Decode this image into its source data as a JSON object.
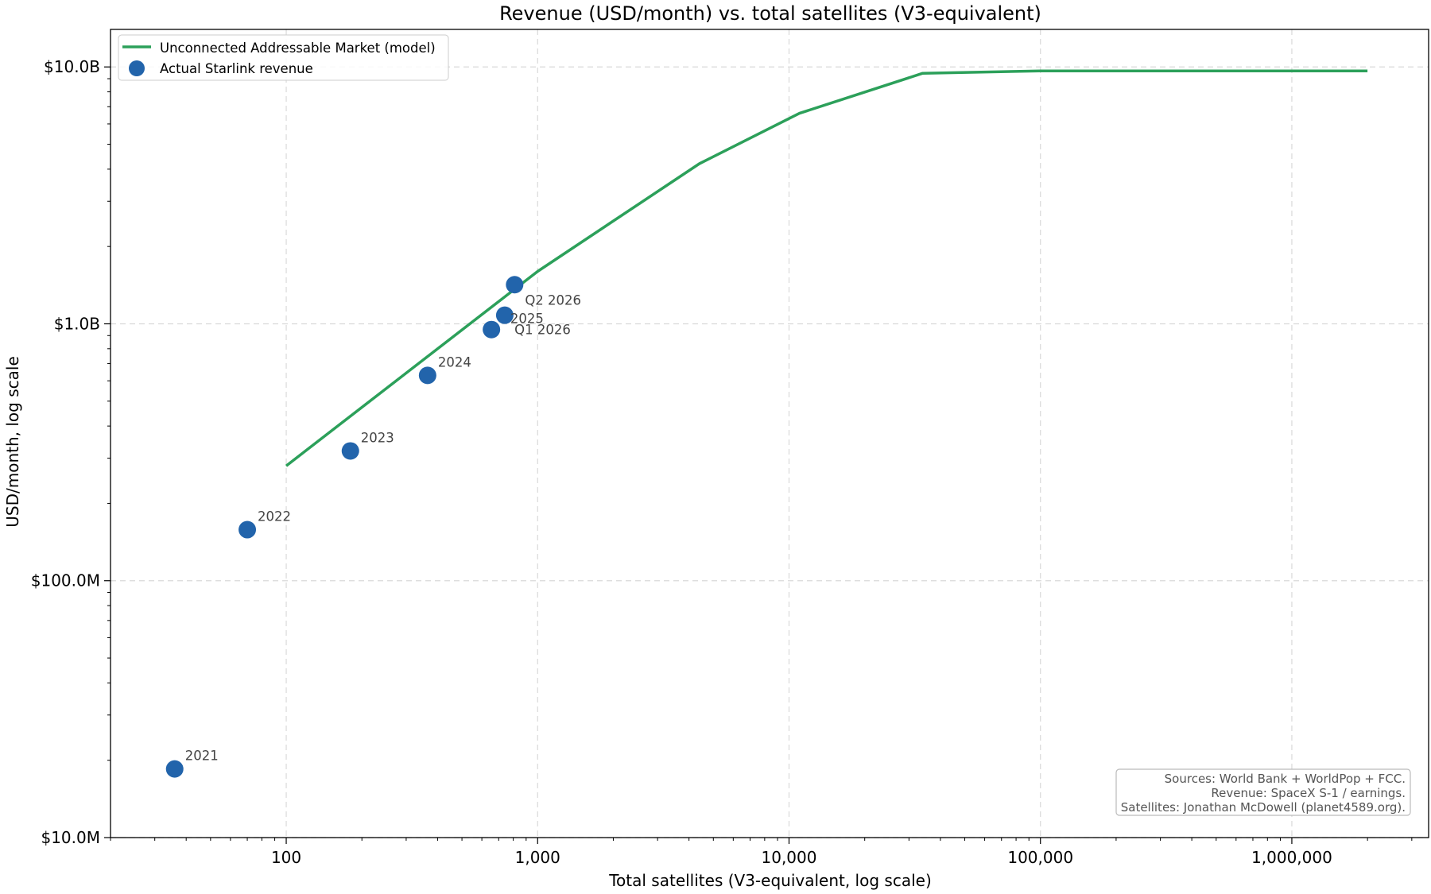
{
  "chart_data": {
    "type": "scatter",
    "title": "Revenue (USD/month) vs. total satellites (V3-equivalent)",
    "xlabel": "Total satellites (V3-equivalent, log scale)",
    "ylabel": "USD/month, log scale",
    "x_scale": "log",
    "y_scale": "log",
    "xlim": [
      20,
      3500000
    ],
    "ylim": [
      10000000,
      14000000000
    ],
    "x_ticks": [
      {
        "value": 100,
        "label": "100"
      },
      {
        "value": 1000,
        "label": "1,000"
      },
      {
        "value": 10000,
        "label": "10,000"
      },
      {
        "value": 100000,
        "label": "100,000"
      },
      {
        "value": 1000000,
        "label": "1,000,000"
      }
    ],
    "y_ticks": [
      {
        "value": 10000000,
        "label": "$10.0M"
      },
      {
        "value": 100000000,
        "label": "$100.0M"
      },
      {
        "value": 1000000000,
        "label": "$1.0B"
      },
      {
        "value": 10000000000,
        "label": "$10.0B"
      }
    ],
    "grid": true,
    "legend_position": "top-left",
    "series": [
      {
        "name": "Unconnected Addressable Market (model)",
        "type": "line",
        "color": "#2ca05a",
        "points": [
          {
            "x": 100,
            "y": 280000000
          },
          {
            "x": 1000,
            "y": 1600000000
          },
          {
            "x": 4400,
            "y": 4200000000
          },
          {
            "x": 11000,
            "y": 6600000000
          },
          {
            "x": 34000,
            "y": 9450000000
          },
          {
            "x": 100000,
            "y": 9650000000
          },
          {
            "x": 2000000,
            "y": 9650000000
          }
        ]
      },
      {
        "name": "Actual Starlink revenue",
        "type": "scatter",
        "color": "#2264ab",
        "points": [
          {
            "x": 36,
            "y": 18500000,
            "label": "2021"
          },
          {
            "x": 70,
            "y": 158000000,
            "label": "2022"
          },
          {
            "x": 180,
            "y": 320000000,
            "label": "2023"
          },
          {
            "x": 365,
            "y": 630000000,
            "label": "2024"
          },
          {
            "x": 740,
            "y": 1080000000,
            "label": "2025"
          },
          {
            "x": 655,
            "y": 950000000,
            "label": "Q1 2026"
          },
          {
            "x": 810,
            "y": 1420000000,
            "label": "Q2 2026"
          }
        ]
      }
    ],
    "annotation": {
      "lines": [
        "Sources: World Bank + WorldPop + FCC.",
        "Revenue: SpaceX S-1 / earnings.",
        "Satellites: Jonathan McDowell (planet4589.org)."
      ],
      "position": "bottom-right"
    }
  }
}
